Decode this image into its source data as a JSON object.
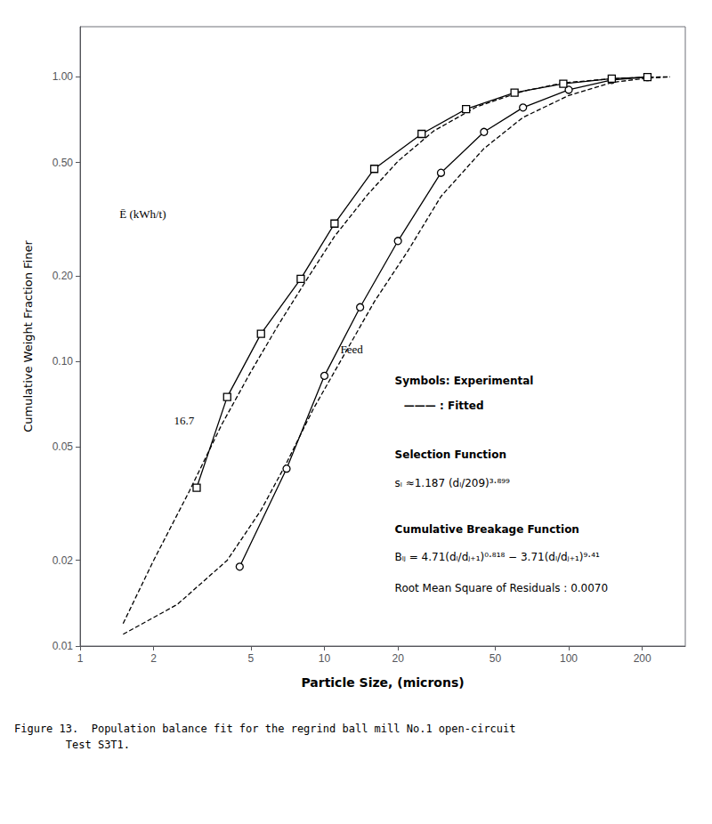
{
  "chart_data": {
    "type": "line",
    "xlabel": "Particle Size, (microns)",
    "ylabel": "Cumulative Weight Fraction Finer",
    "log": true,
    "grid": false,
    "xlim": [
      1,
      300
    ],
    "ylim": [
      0.01,
      1.5
    ],
    "xticks": [
      1,
      2,
      5,
      10,
      20,
      50,
      100,
      200
    ],
    "yticks": [
      0.01,
      0.02,
      0.05,
      {
        "value": 0.1,
        "label": "0.10"
      },
      {
        "value": 0.2,
        "label": "0.20"
      },
      {
        "value": 0.5,
        "label": "0.50"
      },
      {
        "value": 1,
        "label": "1.00"
      }
    ],
    "series": [
      {
        "x": [
          1.5,
          2.5,
          4.0,
          5.5,
          7.0,
          9.0,
          12.0,
          16.0,
          22.0,
          30.0,
          45.0,
          65.0,
          100.0,
          150.0,
          210.0,
          260.0
        ],
        "values": [
          0.011,
          0.014,
          0.02,
          0.03,
          0.044,
          0.068,
          0.105,
          0.162,
          0.245,
          0.38,
          0.56,
          0.72,
          0.86,
          0.955,
          0.99,
          0.999
        ],
        "color": "#000000",
        "marker": "none",
        "line_style": "dashed"
      },
      {
        "x": [
          1.5,
          2.0,
          2.8,
          3.8,
          5.0,
          6.5,
          8.5,
          11.0,
          15.0,
          20.0,
          28.0,
          42.0,
          65.0,
          95.0,
          150.0,
          210.0,
          260.0
        ],
        "values": [
          0.012,
          0.02,
          0.035,
          0.06,
          0.092,
          0.135,
          0.195,
          0.275,
          0.385,
          0.505,
          0.645,
          0.785,
          0.89,
          0.952,
          0.985,
          0.997,
          1.0
        ],
        "color": "#000000",
        "marker": "none",
        "line_style": "dashed"
      },
      {
        "x": [
          4.5,
          7.0,
          10.0,
          14.0,
          20.0,
          30.0,
          45.0,
          65.0,
          100.0,
          150.0,
          210.0
        ],
        "values": [
          0.019,
          0.042,
          0.089,
          0.155,
          0.265,
          0.46,
          0.64,
          0.78,
          0.9,
          0.975,
          0.998
        ],
        "color": "#000000",
        "marker": "circle",
        "line_style": "solid"
      },
      {
        "x": [
          3.0,
          4.0,
          5.5,
          8.0,
          11.0,
          16.0,
          25.0,
          38.0,
          60.0,
          95.0,
          150.0,
          210.0
        ],
        "values": [
          0.036,
          0.075,
          0.125,
          0.195,
          0.305,
          0.475,
          0.63,
          0.77,
          0.88,
          0.945,
          0.985,
          0.998
        ],
        "color": "#000000",
        "marker": "square",
        "line_style": "solid"
      }
    ],
    "annotations": [
      "Ē (kWh/t)",
      "16.7",
      "Feed",
      "Symbols: Experimental",
      "——— : Fitted",
      "Selection Function",
      "sₗ ≈1.187 (dₗ/209)³·⁸⁹⁹",
      "Cumulative Breakage Function",
      "Bₗⱼ = 4.71(dₗ/dⱼ₊₁)⁰·⁸¹⁸ − 3.71(dₗ/dⱼ₊₁)⁹·⁴¹",
      "Root Mean Square of Residuals : 0.0070"
    ],
    "caption": "Figure 13.  Population balance fit for the regrind ball mill No.1 open-circuit\n        Test S3T1."
  }
}
